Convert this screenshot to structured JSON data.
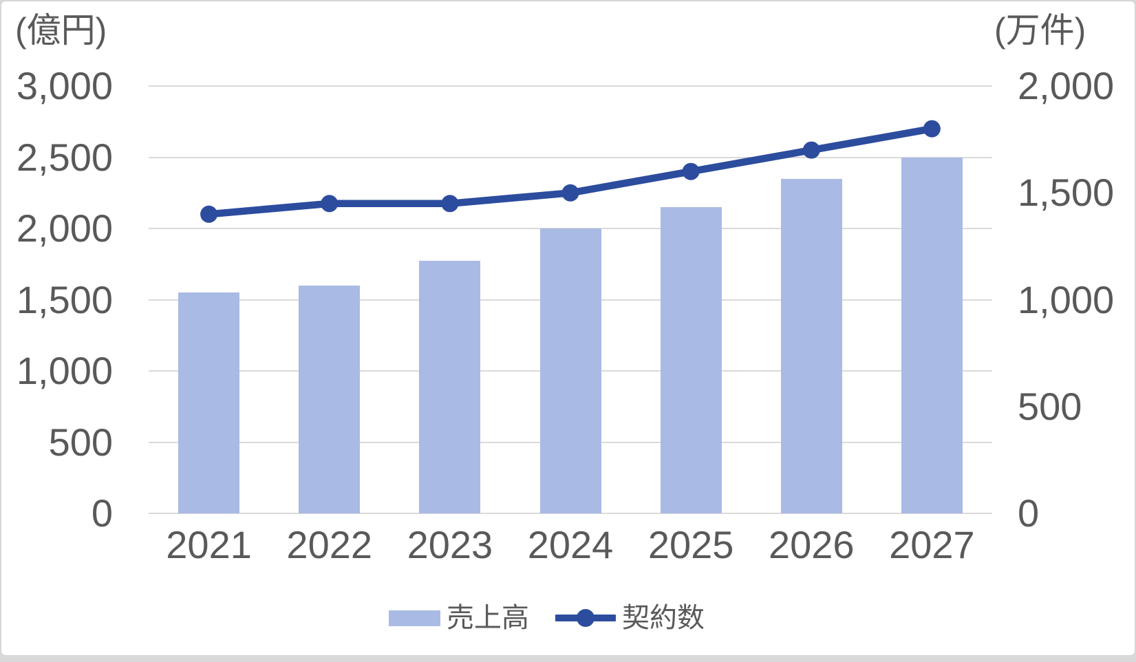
{
  "chart_data": {
    "type": "combo_bar_line",
    "categories": [
      "2021",
      "2022",
      "2023",
      "2024",
      "2025",
      "2026",
      "2027"
    ],
    "series": [
      {
        "name": "売上高",
        "type": "bar",
        "axis": "left",
        "unit": "億円",
        "color": "#A9BAE4",
        "values": [
          1550,
          1600,
          1775,
          2000,
          2150,
          2350,
          2500
        ]
      },
      {
        "name": "契約数",
        "type": "line",
        "axis": "right",
        "unit": "万件",
        "color": "#2C4C9E",
        "values": [
          1400,
          1450,
          1450,
          1500,
          1600,
          1700,
          1800
        ]
      }
    ],
    "left_axis": {
      "title": "(億円)",
      "min": 0,
      "max": 3000,
      "tick_interval": 500,
      "tick_labels": [
        "3,000",
        "2,500",
        "2,000",
        "1,500",
        "1,000",
        "500",
        "0"
      ]
    },
    "right_axis": {
      "title": "(万件)",
      "min": 0,
      "max": 2000,
      "tick_interval": 500,
      "tick_labels": [
        "2,000",
        "1,500",
        "1,000",
        "500",
        "0"
      ]
    },
    "grid": true,
    "legend_position": "bottom"
  },
  "colors": {
    "bar": "#A9BAE4",
    "line": "#2C4C9E",
    "gridline": "#DADADA",
    "text": "#595959",
    "frame_border": "#D6D6D6",
    "outside_background": "#D9D9D9",
    "background": "#FFFFFF"
  },
  "legend": {
    "items": [
      {
        "label": "売上高",
        "swatch": "bar"
      },
      {
        "label": "契約数",
        "swatch": "line-dot"
      }
    ]
  }
}
